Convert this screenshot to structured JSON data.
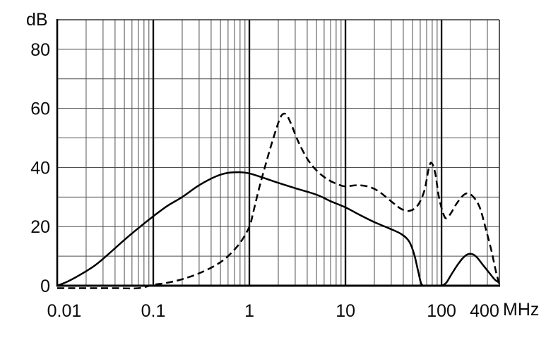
{
  "figure": {
    "background": "#ffffff",
    "y_unit_label": "dB",
    "x_unit_label": "MHz"
  },
  "chart_data": {
    "type": "line",
    "title": "",
    "x_scale": "log",
    "x_range_mhz": [
      0.01,
      400
    ],
    "y_range_db": [
      0,
      90
    ],
    "x_tick_values": [
      0.01,
      0.1,
      1,
      10,
      100,
      400
    ],
    "x_tick_labels": [
      "0.01",
      "0.1",
      "1",
      "10",
      "100",
      "400"
    ],
    "y_tick_values": [
      0,
      20,
      40,
      60,
      80
    ],
    "y_tick_labels": [
      "0",
      "20",
      "40",
      "60",
      "80"
    ],
    "y_minor_step_db": 10,
    "grid": true,
    "grid_color": "#4e4e4e",
    "axis_color": "#000000",
    "major_decade_lines_mhz": [
      0.1,
      1,
      10,
      100
    ],
    "legend": null,
    "series": [
      {
        "name": "solid-curve",
        "line_style": "solid",
        "color": "#000000",
        "points_mhz_db": [
          [
            0.01,
            0
          ],
          [
            0.013,
            1.5
          ],
          [
            0.018,
            4
          ],
          [
            0.025,
            7
          ],
          [
            0.035,
            11
          ],
          [
            0.05,
            15.5
          ],
          [
            0.07,
            19.5
          ],
          [
            0.1,
            23.5
          ],
          [
            0.14,
            27
          ],
          [
            0.2,
            30
          ],
          [
            0.3,
            34
          ],
          [
            0.45,
            37
          ],
          [
            0.6,
            38.2
          ],
          [
            0.8,
            38.4
          ],
          [
            1,
            38
          ],
          [
            1.4,
            36.5
          ],
          [
            2,
            34.8
          ],
          [
            3,
            33
          ],
          [
            5,
            30.8
          ],
          [
            7,
            28.6
          ],
          [
            10,
            26.5
          ],
          [
            14,
            24
          ],
          [
            20,
            21.5
          ],
          [
            28,
            19.5
          ],
          [
            38,
            17.5
          ],
          [
            46,
            15
          ],
          [
            52,
            10.5
          ],
          [
            57,
            5
          ],
          [
            61,
            1
          ],
          [
            65,
            0
          ],
          [
            75,
            0
          ],
          [
            88,
            0
          ],
          [
            100,
            0
          ],
          [
            112,
            1
          ],
          [
            125,
            3.5
          ],
          [
            150,
            7.5
          ],
          [
            175,
            10
          ],
          [
            200,
            10.8
          ],
          [
            230,
            9.8
          ],
          [
            270,
            7
          ],
          [
            320,
            4
          ],
          [
            360,
            2
          ],
          [
            400,
            1
          ]
        ]
      },
      {
        "name": "dashed-curve",
        "line_style": "dashed",
        "color": "#000000",
        "points_mhz_db": [
          [
            0.01,
            0
          ],
          [
            0.02,
            0
          ],
          [
            0.04,
            0
          ],
          [
            0.07,
            0
          ],
          [
            0.1,
            0.3
          ],
          [
            0.14,
            1
          ],
          [
            0.2,
            2.2
          ],
          [
            0.3,
            4.2
          ],
          [
            0.45,
            7
          ],
          [
            0.6,
            10
          ],
          [
            0.8,
            14.5
          ],
          [
            1,
            20
          ],
          [
            1.1,
            25
          ],
          [
            1.22,
            31
          ],
          [
            1.35,
            36.5
          ],
          [
            1.6,
            45
          ],
          [
            1.9,
            53
          ],
          [
            2.15,
            57.5
          ],
          [
            2.4,
            58
          ],
          [
            2.7,
            55
          ],
          [
            3.2,
            49
          ],
          [
            4,
            43
          ],
          [
            5,
            39
          ],
          [
            6.5,
            36
          ],
          [
            8.5,
            34.2
          ],
          [
            10,
            33.6
          ],
          [
            13,
            34
          ],
          [
            17,
            33.6
          ],
          [
            22,
            32
          ],
          [
            30,
            28.5
          ],
          [
            38,
            26
          ],
          [
            46,
            25.3
          ],
          [
            56,
            27
          ],
          [
            66,
            32
          ],
          [
            74,
            40
          ],
          [
            79,
            41.5
          ],
          [
            86,
            38
          ],
          [
            94,
            30
          ],
          [
            104,
            24.5
          ],
          [
            112,
            22.8
          ],
          [
            125,
            24.5
          ],
          [
            145,
            28
          ],
          [
            170,
            30.7
          ],
          [
            190,
            31.2
          ],
          [
            215,
            30
          ],
          [
            250,
            26.5
          ],
          [
            290,
            19
          ],
          [
            330,
            12
          ],
          [
            370,
            4.5
          ],
          [
            400,
            0.5
          ]
        ]
      }
    ]
  }
}
